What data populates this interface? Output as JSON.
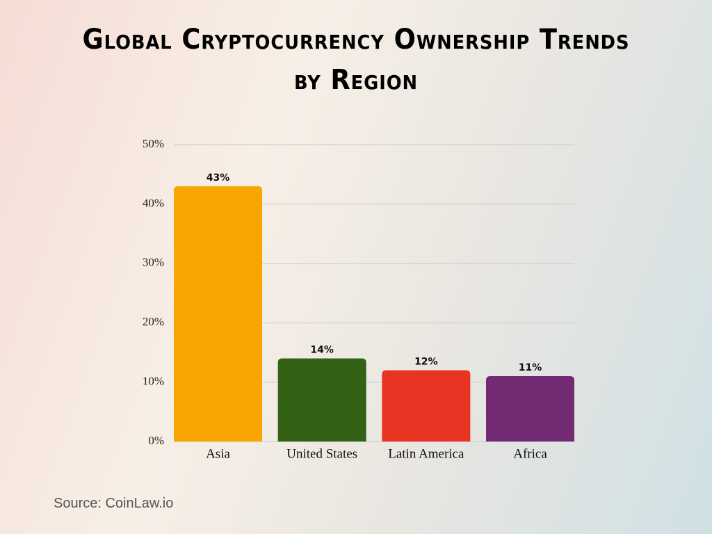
{
  "chart_data": {
    "type": "bar",
    "title": "Global Cryptocurrency Ownership Trends by Region",
    "categories": [
      "Asia",
      "United States",
      "Latin America",
      "Africa"
    ],
    "values": [
      43,
      14,
      12,
      11
    ],
    "value_labels": [
      "43%",
      "14%",
      "12%",
      "11%"
    ],
    "colors": [
      "#f9a602",
      "#336116",
      "#e93423",
      "#722a72"
    ],
    "ylim": [
      0,
      50
    ],
    "yticks": [
      {
        "value": 0,
        "label": "0%"
      },
      {
        "value": 10,
        "label": "10%"
      },
      {
        "value": 20,
        "label": "20%"
      },
      {
        "value": 30,
        "label": "30%"
      },
      {
        "value": 40,
        "label": "40%"
      },
      {
        "value": 50,
        "label": "50%"
      }
    ],
    "grid": true,
    "source": "Source: CoinLaw.io"
  }
}
